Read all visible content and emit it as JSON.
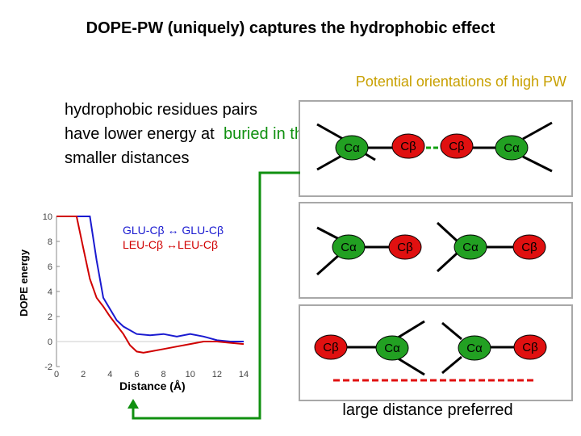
{
  "title": "DOPE-PW (uniquely) captures the hydrophobic effect",
  "subtitle": "Potential orientations of high PW",
  "description": {
    "main": "hydrophobic residues pairs have lower energy at smaller distances",
    "green": "buried in the core"
  },
  "bottom_note": "large distance preferred",
  "colors": {
    "green_arrow": "#109010",
    "subtitle": "#c8a000",
    "box_border": "#a8a8a8",
    "atom_cb_fill": "#e01010",
    "atom_ca_fill": "#22a022"
  },
  "orientations": [
    {
      "pair1": [
        "Cα",
        "Cβ"
      ],
      "pair2": [
        "Cβ",
        "Cα"
      ]
    },
    {
      "pair1": [
        "Cα",
        "Cβ"
      ],
      "pair2": [
        "Cα",
        "Cβ"
      ]
    },
    {
      "pair1": [
        "Cβ",
        "Cα"
      ],
      "pair2": [
        "Cα",
        "Cβ"
      ]
    }
  ],
  "chart_data": {
    "type": "line",
    "xlabel": "Distance (Å)",
    "ylabel": "DOPE energy",
    "xlim": [
      0,
      14
    ],
    "ylim": [
      -2,
      10
    ],
    "xticks": [
      0,
      2,
      4,
      6,
      8,
      10,
      12,
      14
    ],
    "yticks": [
      -2,
      0,
      2,
      4,
      6,
      8,
      10
    ],
    "series": [
      {
        "name": "GLU-Cβ ↔ GLU-Cβ",
        "color": "#1a1ad0",
        "x": [
          0,
          2,
          2.5,
          3,
          3.5,
          4,
          4.5,
          5,
          6,
          7,
          8,
          9,
          10,
          11,
          12,
          13,
          14
        ],
        "y": [
          10,
          10,
          10,
          6.5,
          3.5,
          2.6,
          1.7,
          1.2,
          0.6,
          0.5,
          0.6,
          0.4,
          0.6,
          0.4,
          0.1,
          0,
          0
        ]
      },
      {
        "name": "LEU-Cβ ↔LEU-Cβ",
        "color": "#d00000",
        "x": [
          0,
          1.5,
          2,
          2.5,
          3,
          3.5,
          4,
          4.5,
          5,
          5.5,
          6,
          6.5,
          7,
          8,
          9,
          10,
          11,
          12,
          13,
          14
        ],
        "y": [
          10,
          10,
          7.5,
          5,
          3.5,
          2.8,
          2,
          1.3,
          0.6,
          -0.3,
          -0.8,
          -0.9,
          -0.8,
          -0.6,
          -0.4,
          -0.2,
          0,
          0,
          -0.1,
          -0.2
        ]
      }
    ]
  }
}
